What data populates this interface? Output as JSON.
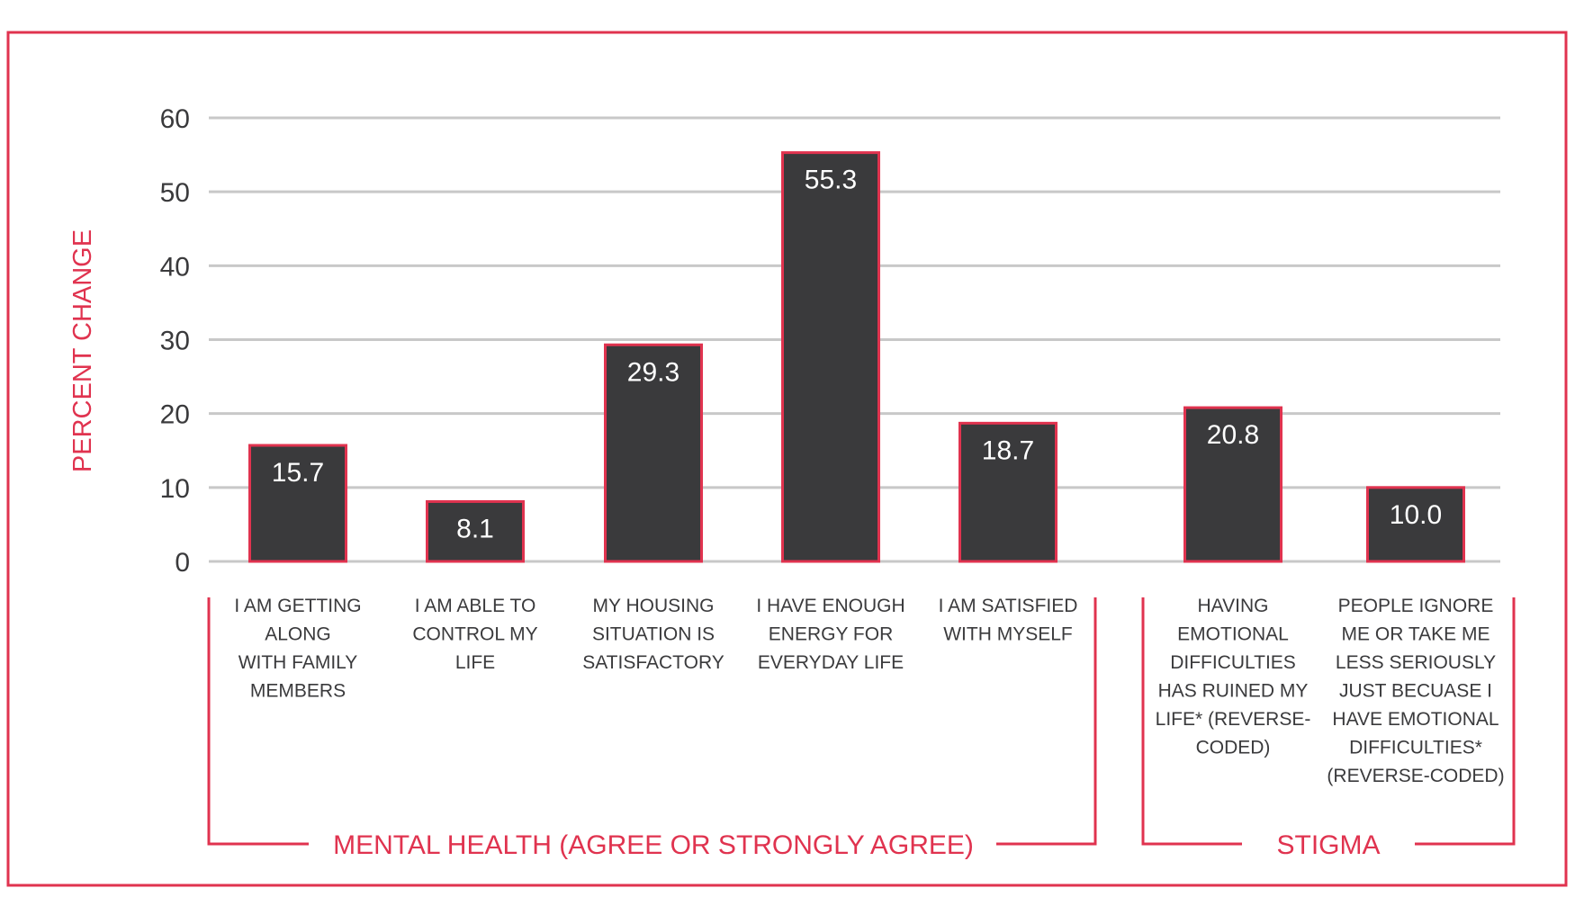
{
  "chart_data": {
    "type": "bar",
    "ylabel": "PERCENT CHANGE",
    "ylim": [
      0,
      60
    ],
    "yticks": [
      0,
      10,
      20,
      30,
      40,
      50,
      60
    ],
    "grid": true,
    "categories": [
      {
        "label_lines": [
          "I AM GETTING",
          "ALONG",
          "WITH FAMILY",
          "MEMBERS"
        ],
        "value": 15.7,
        "value_label": "15.7"
      },
      {
        "label_lines": [
          "I AM ABLE TO",
          "CONTROL MY",
          "LIFE"
        ],
        "value": 8.1,
        "value_label": "8.1"
      },
      {
        "label_lines": [
          "MY HOUSING",
          "SITUATION IS",
          "SATISFACTORY"
        ],
        "value": 29.3,
        "value_label": "29.3"
      },
      {
        "label_lines": [
          "I HAVE ENOUGH",
          "ENERGY FOR",
          "EVERYDAY LIFE"
        ],
        "value": 55.3,
        "value_label": "55.3"
      },
      {
        "label_lines": [
          "I AM SATISFIED",
          "WITH MYSELF"
        ],
        "value": 18.7,
        "value_label": "18.7"
      },
      {
        "label_lines": [
          "HAVING",
          "EMOTIONAL",
          "DIFFICULTIES",
          "HAS RUINED MY",
          "LIFE* (REVERSE-",
          "CODED)"
        ],
        "value": 20.8,
        "value_label": "20.8"
      },
      {
        "label_lines": [
          "PEOPLE IGNORE",
          "ME OR TAKE ME",
          "LESS SERIOUSLY",
          "JUST BECUASE I",
          "HAVE EMOTIONAL",
          "DIFFICULTIES*",
          "(REVERSE-CODED)"
        ],
        "value": 10.0,
        "value_label": "10.0"
      }
    ],
    "groups": [
      {
        "label": "MENTAL HEALTH (AGREE OR STRONGLY AGREE)",
        "categories": [
          0,
          1,
          2,
          3,
          4
        ]
      },
      {
        "label": "STIGMA",
        "categories": [
          5,
          6
        ]
      }
    ],
    "colors": {
      "bar_fill": "#3a3a3c",
      "bar_stroke": "#e0334f",
      "accent": "#e0334f",
      "grid": "#c8c8c8",
      "tick_text": "#3a3a3c",
      "value_text": "#ffffff"
    }
  }
}
